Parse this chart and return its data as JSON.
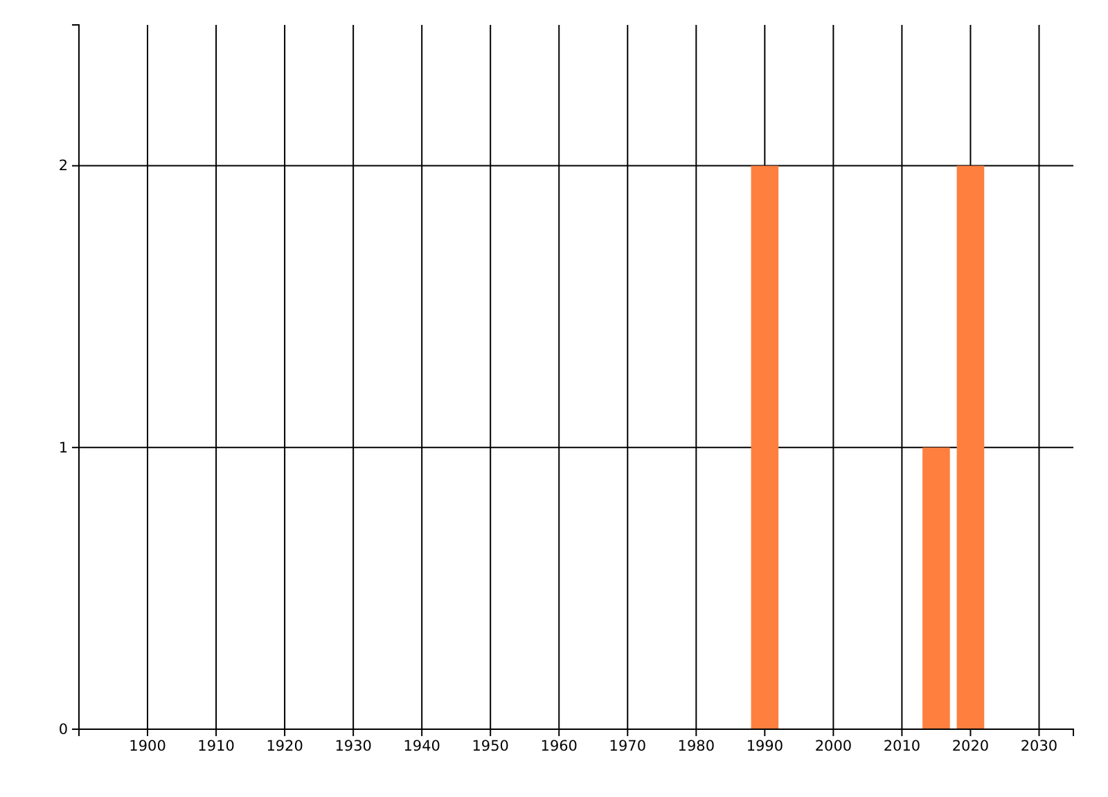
{
  "chart_data": {
    "type": "bar",
    "x": [
      1990,
      2015,
      2020
    ],
    "values": [
      2,
      1,
      2
    ],
    "color": "#ff7f3f",
    "xlim": [
      1890,
      2035
    ],
    "xticks": [
      1900,
      1910,
      1920,
      1930,
      1940,
      1950,
      1960,
      1970,
      1980,
      1990,
      2000,
      2010,
      2020,
      2030
    ],
    "ylim": [
      0,
      2.5
    ],
    "yticks": [
      0,
      1,
      2
    ],
    "grid": true
  }
}
